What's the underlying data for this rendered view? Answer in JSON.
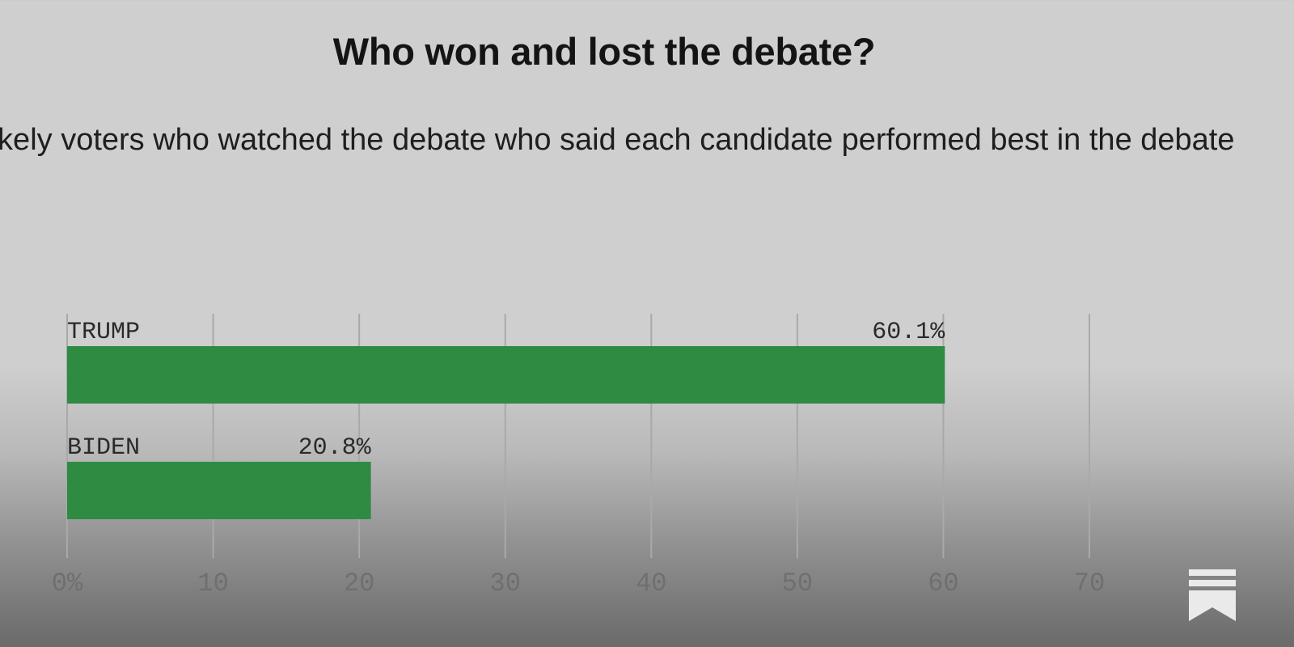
{
  "chart_data": {
    "type": "bar",
    "orientation": "horizontal",
    "title": "Who won and lost the debate?",
    "subtitle": "Likely voters who watched the debate who said each candidate performed best in the debate",
    "categories": [
      "TRUMP",
      "BIDEN"
    ],
    "values": [
      60.1,
      20.8
    ],
    "value_labels": [
      "60.1%",
      "20.8%"
    ],
    "xlim": [
      0,
      70
    ],
    "xticks": [
      0,
      10,
      20,
      30,
      40,
      50,
      60,
      70
    ],
    "xtick_labels": [
      "0%",
      "10",
      "20",
      "30",
      "40",
      "50",
      "60",
      "70"
    ],
    "xlabel": "",
    "ylabel": "",
    "grid": true,
    "legend": "none",
    "bar_color": "#2f8a42"
  },
  "colors": {
    "bar": "#2f8a42",
    "gridline": "#a9a9a9",
    "tick_text": "#6f6f6f",
    "label_text": "#2a2a2a"
  },
  "watermark": {
    "icon": "bookmark-logo-icon"
  }
}
